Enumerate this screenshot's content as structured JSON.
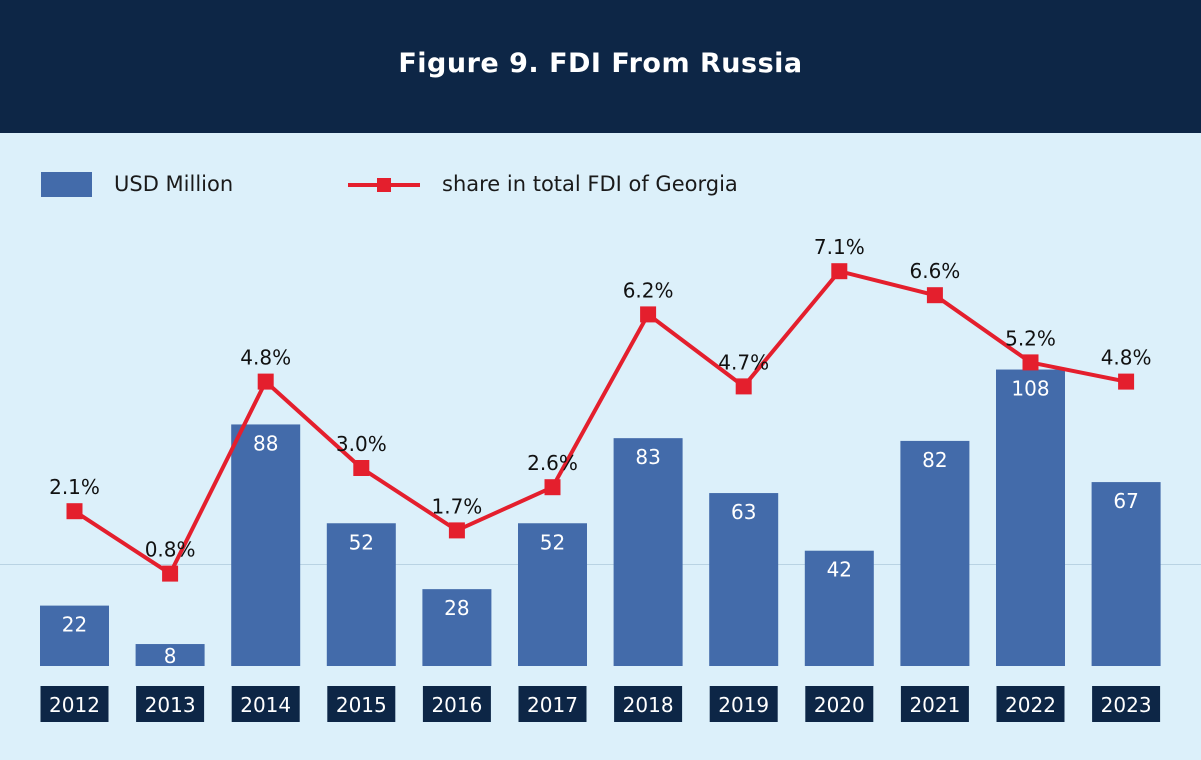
{
  "header": {
    "title": "Figure 9. FDI From Russia"
  },
  "legend": {
    "bars_label": "USD Million",
    "line_label": "share in total FDI of Georgia"
  },
  "colors": {
    "header_bg": "#0d2646",
    "background": "#dcf0fa",
    "bar": "#436baa",
    "line": "#e41f2d",
    "year_box": "#0d2646"
  },
  "chart_data": {
    "type": "bar",
    "categories": [
      "2012",
      "2013",
      "2014",
      "2015",
      "2016",
      "2017",
      "2018",
      "2019",
      "2020",
      "2021",
      "2022",
      "2023"
    ],
    "series": [
      {
        "name": "USD Million",
        "type": "bar",
        "values": [
          22,
          8,
          88,
          52,
          28,
          52,
          83,
          63,
          42,
          82,
          108,
          67
        ],
        "labels": [
          "22",
          "8",
          "88",
          "52",
          "28",
          "52",
          "83",
          "63",
          "42",
          "82",
          "108",
          "67"
        ]
      },
      {
        "name": "share in total FDI of Georgia",
        "type": "line",
        "values": [
          2.1,
          0.8,
          4.8,
          3.0,
          1.7,
          2.6,
          6.2,
          4.7,
          7.1,
          6.6,
          5.2,
          4.8
        ],
        "labels": [
          "2.1%",
          "0.8%",
          "4.8%",
          "3.0%",
          "1.7%",
          "2.6%",
          "6.2%",
          "4.7%",
          "7.1%",
          "6.6%",
          "5.2%",
          "4.8%"
        ]
      }
    ],
    "title": "Figure 9. FDI From Russia",
    "xlabel": "",
    "ylabel": "",
    "legend_position": "top-left",
    "grid": false
  }
}
